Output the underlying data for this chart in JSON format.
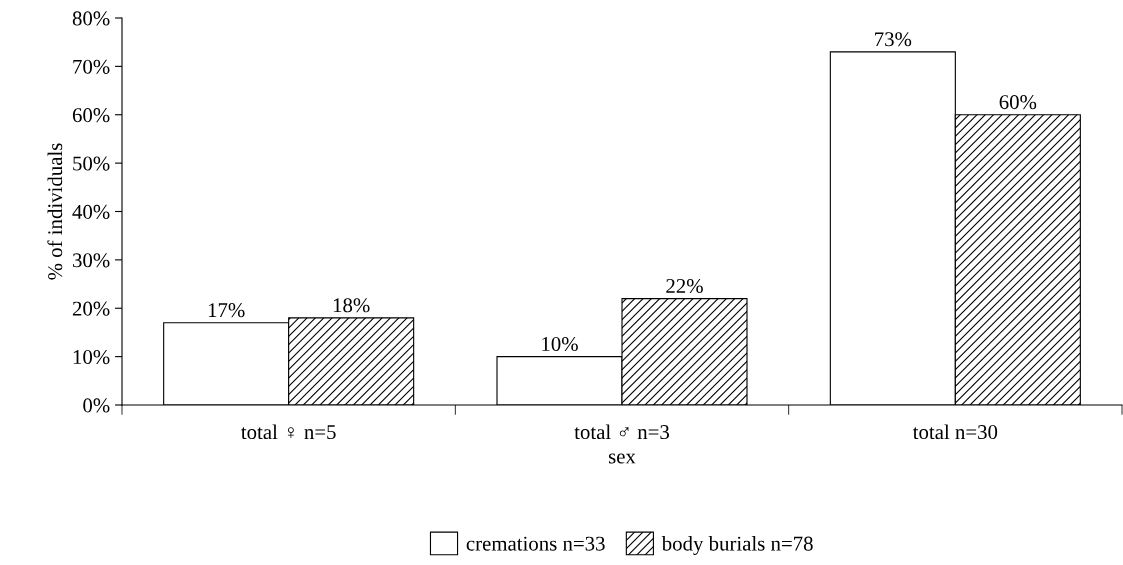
{
  "chart_data": {
    "type": "bar",
    "xlabel": "sex",
    "ylabel": "% of individuals",
    "categories": [
      "total ♀ n=5",
      "total ♂ n=3",
      "total n=30"
    ],
    "series": [
      {
        "name": "cremations n=33",
        "color": "#ffffff",
        "values": [
          17,
          10,
          73
        ],
        "value_labels": [
          "17%",
          "10%",
          "73%"
        ]
      },
      {
        "name": "body burials n=78",
        "color": "#000000",
        "values": [
          18,
          22,
          60
        ],
        "value_labels": [
          "18%",
          "22%",
          "60%"
        ]
      }
    ],
    "ylim": [
      0,
      80
    ],
    "yticks": [
      {
        "value": 0,
        "label": "0%"
      },
      {
        "value": 10,
        "label": "10%"
      },
      {
        "value": 20,
        "label": "20%"
      },
      {
        "value": 30,
        "label": "30%"
      },
      {
        "value": 40,
        "label": "40%"
      },
      {
        "value": 50,
        "label": "50%"
      },
      {
        "value": 60,
        "label": "60%"
      },
      {
        "value": 70,
        "label": "70%"
      },
      {
        "value": 80,
        "label": "80%"
      }
    ],
    "grid": false,
    "legend": "bottom"
  }
}
